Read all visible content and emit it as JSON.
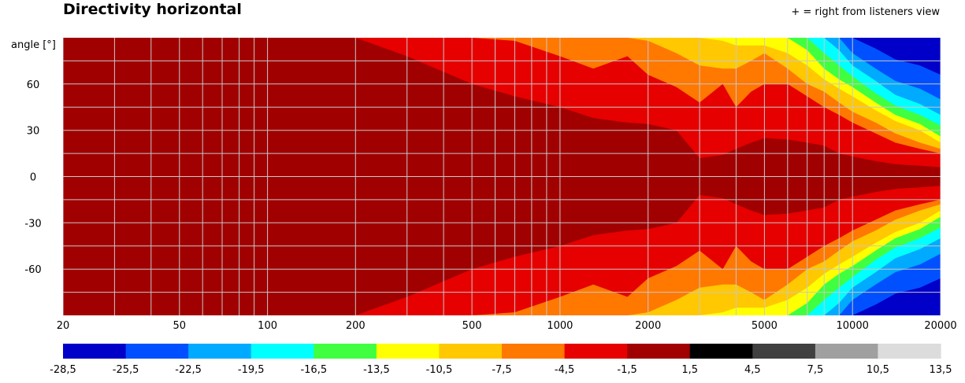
{
  "chart_data": {
    "type": "heatmap",
    "title": "Directivity horizontal",
    "note": "+ = right from listeners view",
    "ylabel": "angle [°]",
    "x_scale": "log",
    "xlim": [
      20,
      20000
    ],
    "ylim": [
      -90,
      90
    ],
    "x_ticks": [
      {
        "value": 20,
        "label": "20"
      },
      {
        "value": 50,
        "label": "50"
      },
      {
        "value": 100,
        "label": "100"
      },
      {
        "value": 200,
        "label": "200"
      },
      {
        "value": 500,
        "label": "500"
      },
      {
        "value": 1000,
        "label": "1000"
      },
      {
        "value": 2000,
        "label": "2000"
      },
      {
        "value": 5000,
        "label": "5000"
      },
      {
        "value": 10000,
        "label": "10000"
      },
      {
        "value": 20000,
        "label": "20000"
      }
    ],
    "y_ticks": [
      {
        "value": 60,
        "label": "60"
      },
      {
        "value": 30,
        "label": "30"
      },
      {
        "value": 0,
        "label": "0"
      },
      {
        "value": -30,
        "label": "-30"
      },
      {
        "value": -60,
        "label": "-60"
      }
    ],
    "grid": true,
    "colorbar": {
      "boundaries": [
        "-28,5",
        "-25,5",
        "-22,5",
        "-19,5",
        "-16,5",
        "-13,5",
        "-10,5",
        "-7,5",
        "-4,5",
        "-1,5",
        "1,5",
        "4,5",
        "7,5",
        "10,5",
        "13,5"
      ],
      "colors": [
        "#0000c8",
        "#0050ff",
        "#00aaff",
        "#00ffff",
        "#40ff40",
        "#ffff00",
        "#ffc800",
        "#ff7800",
        "#e60000",
        "#a00000",
        "#000000",
        "#404040",
        "#a0a0a0",
        "#dcdcdc"
      ]
    },
    "contours": {
      "frequencies": [
        20,
        100,
        150,
        200,
        300,
        500,
        700,
        1000,
        1300,
        1700,
        2000,
        2500,
        3000,
        3600,
        4000,
        4500,
        5000,
        6000,
        7000,
        8000,
        9000,
        10000,
        12000,
        14000,
        17000,
        20000
      ],
      "levels": [
        {
          "value": -1.5,
          "angles": [
            90,
            90,
            90,
            90,
            78,
            60,
            52,
            45,
            38,
            35,
            34,
            30,
            12,
            14,
            18,
            22,
            25,
            24,
            22,
            20,
            15,
            13,
            10,
            8,
            7,
            6
          ]
        },
        {
          "value": -4.5,
          "angles": [
            90,
            90,
            90,
            90,
            90,
            90,
            88,
            78,
            70,
            78,
            66,
            58,
            48,
            60,
            45,
            55,
            60,
            60,
            52,
            45,
            40,
            35,
            28,
            22,
            18,
            15
          ]
        },
        {
          "value": -7.5,
          "angles": [
            90,
            90,
            90,
            90,
            90,
            90,
            90,
            90,
            90,
            90,
            88,
            80,
            72,
            70,
            70,
            75,
            80,
            70,
            60,
            55,
            48,
            42,
            35,
            28,
            22,
            18
          ]
        },
        {
          "value": -10.5,
          "angles": [
            90,
            90,
            90,
            90,
            90,
            90,
            90,
            90,
            90,
            90,
            90,
            90,
            90,
            88,
            85,
            85,
            85,
            80,
            72,
            63,
            57,
            52,
            43,
            36,
            30,
            22
          ]
        },
        {
          "value": -13.5,
          "angles": [
            90,
            90,
            90,
            90,
            90,
            90,
            90,
            90,
            90,
            90,
            90,
            90,
            90,
            90,
            90,
            90,
            90,
            90,
            82,
            70,
            63,
            58,
            48,
            40,
            34,
            26
          ]
        },
        {
          "value": -16.5,
          "angles": [
            90,
            90,
            90,
            90,
            90,
            90,
            90,
            90,
            90,
            90,
            90,
            90,
            90,
            90,
            90,
            90,
            90,
            90,
            90,
            80,
            72,
            65,
            54,
            46,
            40,
            33
          ]
        },
        {
          "value": -19.5,
          "angles": [
            90,
            90,
            90,
            90,
            90,
            90,
            90,
            90,
            90,
            90,
            90,
            90,
            90,
            90,
            90,
            90,
            90,
            90,
            90,
            90,
            82,
            72,
            62,
            53,
            47,
            40
          ]
        },
        {
          "value": -22.5,
          "angles": [
            90,
            90,
            90,
            90,
            90,
            90,
            90,
            90,
            90,
            90,
            90,
            90,
            90,
            90,
            90,
            90,
            90,
            90,
            90,
            90,
            90,
            80,
            70,
            62,
            57,
            50
          ]
        },
        {
          "value": -25.5,
          "angles": [
            90,
            90,
            90,
            90,
            90,
            90,
            90,
            90,
            90,
            90,
            90,
            90,
            90,
            90,
            90,
            90,
            90,
            90,
            90,
            90,
            90,
            90,
            83,
            76,
            72,
            66
          ]
        }
      ]
    }
  }
}
